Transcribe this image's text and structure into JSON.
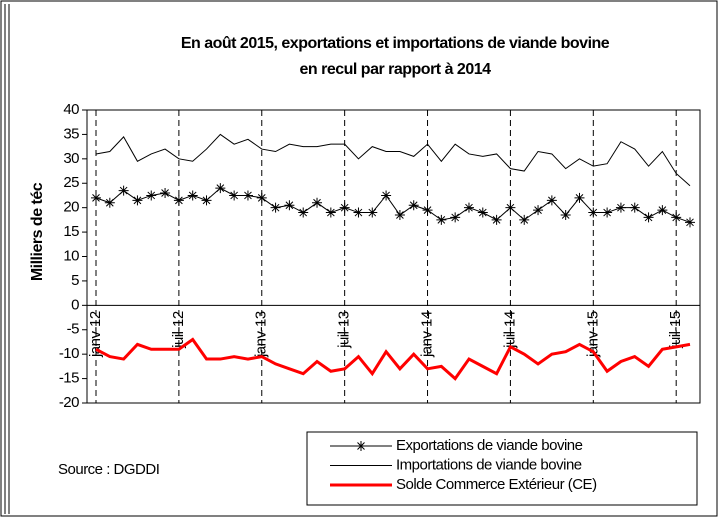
{
  "chart_data": {
    "type": "line",
    "title": [
      "En août 2015,  exportations et  importations de viande bovine",
      "en recul par rapport à 2014"
    ],
    "y_label": "Milliers de téc",
    "source": "Source : DGDDI",
    "categories": [
      "janv-12",
      null,
      null,
      null,
      null,
      null,
      "juil-12",
      null,
      null,
      null,
      null,
      null,
      "janv-13",
      null,
      null,
      null,
      null,
      null,
      "juil-13",
      null,
      null,
      null,
      null,
      null,
      "janv-14",
      null,
      null,
      null,
      null,
      null,
      "juil-14",
      null,
      null,
      null,
      null,
      null,
      "janv-15",
      null,
      null,
      null,
      null,
      null,
      "juil-15",
      null
    ],
    "ylim": [
      -20,
      40
    ],
    "yticks": [
      -20,
      -15,
      -10,
      -5,
      0,
      5,
      10,
      15,
      20,
      25,
      30,
      35,
      40
    ],
    "series": [
      {
        "name": "Exportations de viande bovine",
        "color": "#000000",
        "marker": "asterisk",
        "values": [
          22,
          21,
          23.5,
          21.5,
          22.5,
          23,
          21.5,
          22.5,
          21.5,
          24,
          22.5,
          22.5,
          22,
          20,
          20.5,
          19,
          21,
          19,
          20,
          19,
          19,
          22.5,
          18.5,
          20.5,
          19.5,
          17.5,
          18,
          20,
          19,
          17.5,
          20,
          17.5,
          19.5,
          21.5,
          18.5,
          22,
          19,
          19,
          20,
          20,
          18,
          19.5,
          18,
          17
        ]
      },
      {
        "name": "Importations de viande bovine",
        "color": "#000000",
        "values": [
          31,
          31.5,
          34.5,
          29.5,
          31,
          32,
          30,
          29.5,
          32,
          35,
          33,
          34,
          32,
          31.5,
          33,
          32.5,
          32.5,
          33,
          33,
          30,
          32.5,
          31.5,
          31.5,
          30.5,
          33,
          29.5,
          33,
          31,
          30.5,
          31,
          28,
          27.5,
          31.5,
          31,
          28,
          30,
          28.5,
          29,
          33.5,
          32,
          28.5,
          31.5,
          27,
          24.5
        ]
      },
      {
        "name": "Solde Commerce Extérieur (CE)",
        "color": "#ff0000",
        "values": [
          -9,
          -10.5,
          -11,
          -8,
          -9,
          -9,
          -9,
          -7,
          -11,
          -11,
          -10.5,
          -11,
          -10.5,
          -12,
          -13,
          -14,
          -11.5,
          -13.5,
          -13,
          -10.5,
          -14,
          -9.5,
          -13,
          -10,
          -13,
          -12.5,
          -15,
          -11,
          -12.5,
          -14,
          -8.5,
          -10,
          -12,
          -10,
          -9.5,
          -8,
          -9.5,
          -13.5,
          -11.5,
          -10.5,
          -12.5,
          -9,
          -8.5,
          -8
        ]
      }
    ]
  }
}
